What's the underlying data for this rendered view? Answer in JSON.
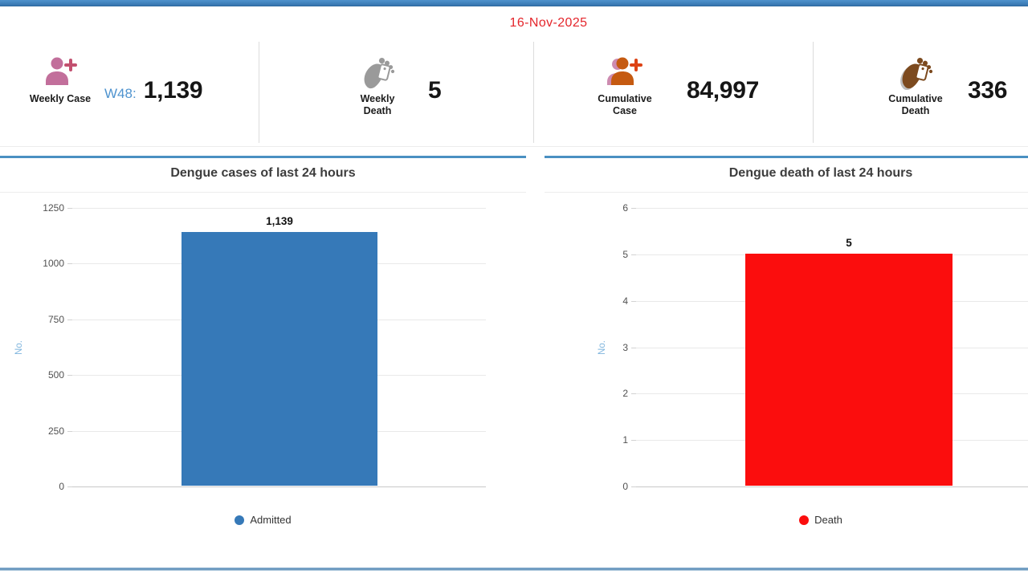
{
  "header": {
    "date": "16-Nov-2025"
  },
  "kpis": [
    {
      "label": "Weekly Case",
      "prefix": "W48:",
      "value": "1,139",
      "icon": "person-plus-icon"
    },
    {
      "label": "Weekly Death",
      "prefix": "",
      "value": "5",
      "icon": "foot-toe-tag-icon"
    },
    {
      "label": "Cumulative Case",
      "prefix": "",
      "value": "84,997",
      "icon": "people-plus-icon"
    },
    {
      "label": "Cumulative Death",
      "prefix": "",
      "value": "336",
      "icon": "foot-toe-tag-icon"
    }
  ],
  "chart_data": [
    {
      "type": "bar",
      "title": "Dengue cases of last 24 hours",
      "ylabel": "No.",
      "categories": [
        "Admitted"
      ],
      "series": [
        {
          "name": "Admitted",
          "values": [
            1139
          ]
        }
      ],
      "value_labels": [
        "1,139"
      ],
      "ylim": [
        0,
        1250
      ],
      "yticks": [
        0,
        250,
        500,
        750,
        1000,
        1250
      ],
      "bar_color": "#3679b8",
      "grid": true,
      "legend_position": "bottom",
      "legend": [
        {
          "label": "Admitted",
          "color": "#3679b8"
        }
      ]
    },
    {
      "type": "bar",
      "title": "Dengue death of last 24 hours",
      "ylabel": "No.",
      "categories": [
        "Death"
      ],
      "series": [
        {
          "name": "Death",
          "values": [
            5
          ]
        }
      ],
      "value_labels": [
        "5"
      ],
      "ylim": [
        0,
        6
      ],
      "yticks": [
        0,
        1,
        2,
        3,
        4,
        5,
        6
      ],
      "bar_color": "#fb0d0d",
      "grid": true,
      "legend_position": "bottom",
      "legend": [
        {
          "label": "Death",
          "color": "#fb0d0d"
        }
      ]
    }
  ],
  "colors": {
    "topbar_blue": "#3e81c1",
    "date_red": "#e4252b",
    "prefix_blue": "#4e93cf",
    "case_bar_blue": "#3679b8",
    "death_bar_red": "#fb0d0d",
    "weekly_case_icon_pink": "#c26f9b",
    "cumulative_case_icon_orange": "#c55a11",
    "weekly_death_icon_gray": "#9a9a9a",
    "cumulative_death_icon_brown": "#7c4a1f"
  }
}
